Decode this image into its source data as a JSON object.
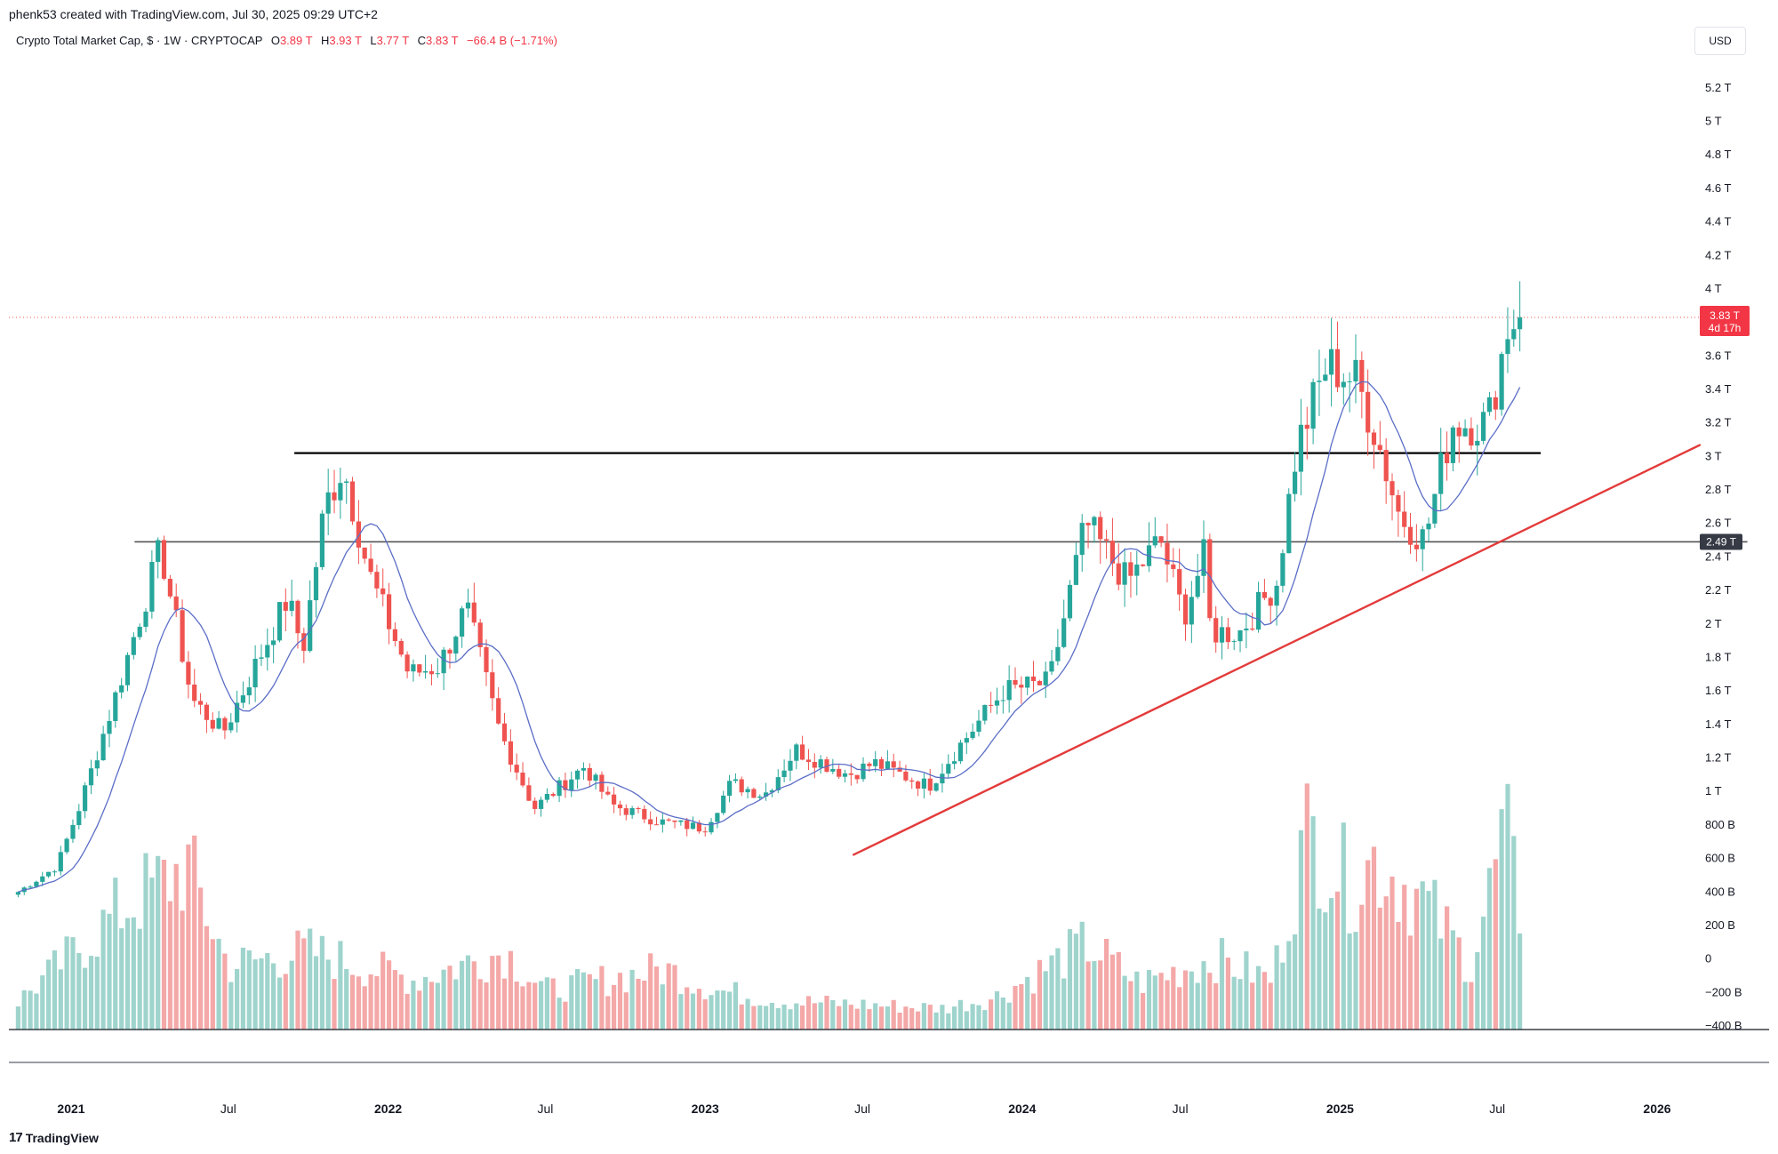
{
  "header": {
    "credit": "phenk53 created with TradingView.com, Jul 30, 2025 09:29 UTC+2"
  },
  "legend": {
    "symbol": "Crypto Total Market Cap, $ · 1W · CRYPTOCAP",
    "o_label": "O",
    "o_value": "3.89 T",
    "h_label": "H",
    "h_value": "3.93 T",
    "l_label": "L",
    "l_value": "3.77 T",
    "c_label": "C",
    "c_value": "3.83 T",
    "change": "−66.4 B (−1.71%)"
  },
  "currency": "USD",
  "price_badge": {
    "price": "3.83 T",
    "countdown": "4d 17h"
  },
  "level_badge": "2.49 T",
  "brand": {
    "logo": "17",
    "name": "TradingView"
  },
  "colors": {
    "up": "#26a69a",
    "down": "#ef5350",
    "up_vol": "#9fd4cd",
    "down_vol": "#f4a8a8",
    "ma": "#5b6ec7",
    "trend": "#e33b3b"
  },
  "chart_data": {
    "type": "candlestick",
    "unit": "trillion USD",
    "x_ticks": [
      "2021",
      "Jul",
      "2022",
      "Jul",
      "2023",
      "Jul",
      "2024",
      "Jul",
      "2025",
      "Jul",
      "2026"
    ],
    "y_ticks": [
      "5.2 T",
      "5 T",
      "4.8 T",
      "4.6 T",
      "4.4 T",
      "4.2 T",
      "4 T",
      "3.6 T",
      "3.4 T",
      "3.2 T",
      "3 T",
      "2.8 T",
      "2.6 T",
      "2.4 T",
      "2.2 T",
      "2 T",
      "1.8 T",
      "1.6 T",
      "1.4 T",
      "1.2 T",
      "1 T",
      "800 B",
      "600 B",
      "400 B",
      "200 B",
      "0",
      "−200 B",
      "−400 B"
    ],
    "ylim": [
      -0.4,
      5.3
    ],
    "last_price": 3.83,
    "horizontal_levels": [
      {
        "value": 3.02,
        "from": "2021-09-15",
        "to": "2025-08-20"
      },
      {
        "value": 2.49,
        "from": "2021-03-15",
        "to": "2026-04-15"
      }
    ],
    "trendline": {
      "from": [
        "2023-06-20",
        0.62
      ],
      "to": [
        "2026-02-20",
        3.07
      ]
    },
    "anchors": [
      [
        "2020-11-01",
        0.4
      ],
      [
        "2020-12-15",
        0.55
      ],
      [
        "2021-01-10",
        0.9
      ],
      [
        "2021-02-20",
        1.55
      ],
      [
        "2021-04-14",
        2.45
      ],
      [
        "2021-05-20",
        1.55
      ],
      [
        "2021-06-25",
        1.35
      ],
      [
        "2021-08-15",
        1.9
      ],
      [
        "2021-09-07",
        2.15
      ],
      [
        "2021-09-25",
        1.85
      ],
      [
        "2021-10-20",
        2.7
      ],
      [
        "2021-11-10",
        2.95
      ],
      [
        "2021-12-10",
        2.3
      ],
      [
        "2022-01-25",
        1.7
      ],
      [
        "2022-03-01",
        1.75
      ],
      [
        "2022-04-01",
        2.1
      ],
      [
        "2022-05-10",
        1.35
      ],
      [
        "2022-06-18",
        0.9
      ],
      [
        "2022-08-15",
        1.15
      ],
      [
        "2022-09-15",
        0.92
      ],
      [
        "2022-11-10",
        0.82
      ],
      [
        "2022-12-31",
        0.78
      ],
      [
        "2023-01-31",
        1.05
      ],
      [
        "2023-03-10",
        0.98
      ],
      [
        "2023-04-15",
        1.25
      ],
      [
        "2023-06-15",
        1.1
      ],
      [
        "2023-07-15",
        1.17
      ],
      [
        "2023-09-15",
        1.03
      ],
      [
        "2023-10-25",
        1.3
      ],
      [
        "2023-12-10",
        1.6
      ],
      [
        "2024-02-01",
        1.65
      ],
      [
        "2024-03-14",
        2.6
      ],
      [
        "2024-05-01",
        2.25
      ],
      [
        "2024-06-08",
        2.5
      ],
      [
        "2024-07-05",
        2.05
      ],
      [
        "2024-07-28",
        2.4
      ],
      [
        "2024-08-05",
        1.95
      ],
      [
        "2024-09-07",
        1.95
      ],
      [
        "2024-10-20",
        2.25
      ],
      [
        "2024-11-12",
        3.05
      ],
      [
        "2024-12-17",
        3.55
      ],
      [
        "2025-01-20",
        3.45
      ],
      [
        "2025-02-10",
        3.15
      ],
      [
        "2025-03-10",
        2.65
      ],
      [
        "2025-04-08",
        2.5
      ],
      [
        "2025-05-10",
        3.2
      ],
      [
        "2025-06-20",
        3.2
      ],
      [
        "2025-07-14",
        3.8
      ],
      [
        "2025-07-28",
        3.83
      ]
    ],
    "volume_anchors": [
      [
        "2020-11-01",
        40
      ],
      [
        "2021-01-15",
        120
      ],
      [
        "2021-03-01",
        170
      ],
      [
        "2021-05-15",
        230
      ],
      [
        "2021-07-01",
        90
      ],
      [
        "2021-10-01",
        110
      ],
      [
        "2021-12-01",
        90
      ],
      [
        "2022-02-01",
        70
      ],
      [
        "2022-05-15",
        110
      ],
      [
        "2022-07-01",
        55
      ],
      [
        "2022-11-15",
        85
      ],
      [
        "2023-01-15",
        55
      ],
      [
        "2023-04-01",
        40
      ],
      [
        "2023-10-01",
        30
      ],
      [
        "2023-12-01",
        45
      ],
      [
        "2024-03-15",
        120
      ],
      [
        "2024-05-15",
        65
      ],
      [
        "2024-08-10",
        100
      ],
      [
        "2024-10-15",
        70
      ],
      [
        "2024-11-25",
        280
      ],
      [
        "2025-01-15",
        200
      ],
      [
        "2025-02-10",
        240
      ],
      [
        "2025-04-08",
        180
      ],
      [
        "2025-06-01",
        90
      ],
      [
        "2025-07-10",
        280
      ],
      [
        "2025-07-28",
        160
      ]
    ]
  }
}
